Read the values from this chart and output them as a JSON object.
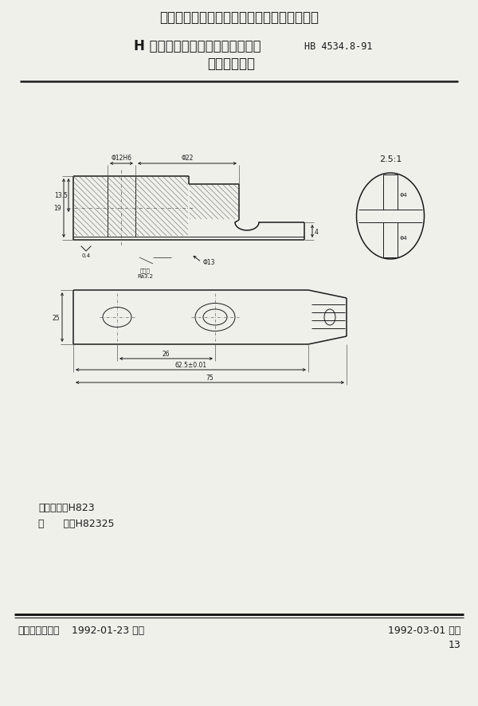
{
  "title_top": "中华人民共和国航空航天工业部航空工业标准",
  "title_main": "H 型孔系组合夹具成组定位夹紧件",
  "title_std": "HB 4534.8-91",
  "title_sub": "指形固定钳爪",
  "scale_label": "2.5:1",
  "classify_label1": "分类代号：H823",
  "classify_label2": "标      记：H82325",
  "footer_left_bold": "航空航天工业部",
  "footer_left_normal": " 1992-01-23 发布",
  "footer_right": "1992-03-01 实施",
  "page_num": "13",
  "dim_phi12h6": "Φ12H6",
  "dim_phi22": "Φ22",
  "dim_phi13": "Φ13",
  "dim_phi4_top": "Φ4",
  "dim_phi4_bot": "Φ4",
  "dim_19": "19",
  "dim_13_5": "13.5",
  "dim_4": "4",
  "dim_0_4": "0.4",
  "dim_25": "25",
  "dim_26": "26",
  "dim_625": "62.5±0.01",
  "dim_75": "75",
  "label_roughness": "粗糙度\nRa3.2",
  "bg_color": "#f0f0eb",
  "line_color": "#1a1a1a"
}
